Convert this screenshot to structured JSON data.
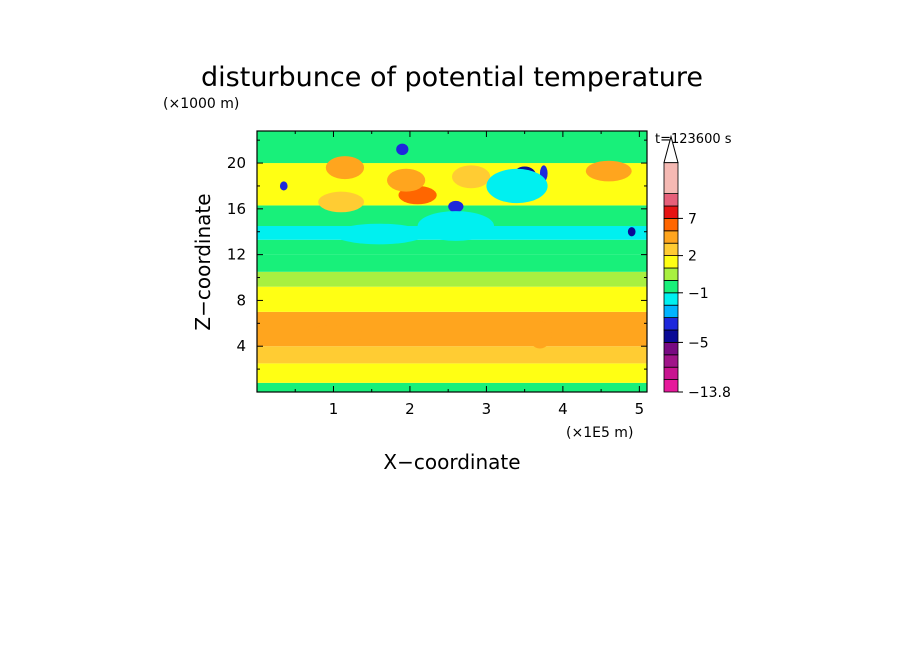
{
  "chart_data": {
    "type": "heatmap",
    "title": "disturbunce of potential temperature",
    "time_label": "t=123600 s",
    "xlabel": "X−coordinate",
    "ylabel": "Z−coordinate",
    "x_unit": "(×1E5 m)",
    "y_unit": "(×1000 m)",
    "xlim": [
      0,
      5.1
    ],
    "ylim": [
      0,
      22.8
    ],
    "x_ticks": [
      1,
      2,
      3,
      4,
      5
    ],
    "y_ticks": [
      4,
      8,
      12,
      16,
      20
    ],
    "x_tick_labels": [
      "1",
      "2",
      "3",
      "4",
      "5"
    ],
    "y_tick_labels": [
      "4",
      "8",
      "12",
      "16",
      "20"
    ],
    "colorbar": {
      "labels": [
        "7",
        "2",
        "−1",
        "−5",
        "−13.8"
      ],
      "label_values": [
        7,
        2,
        -1,
        -5,
        -13.8
      ],
      "levels": [
        -13.8,
        -11,
        -9,
        -7,
        -5,
        -4,
        -3,
        -2,
        -1,
        0,
        1,
        2,
        3,
        5,
        7,
        9,
        12
      ],
      "colors": [
        "#e6199b",
        "#c81490",
        "#a01489",
        "#780a82",
        "#0a0a96",
        "#1e28dc",
        "#00b4ff",
        "#00f0f0",
        "#18f07a",
        "#a8f040",
        "#ffff14",
        "#ffcc33",
        "#ffa51e",
        "#ff6600",
        "#e61414",
        "#e6607a",
        "#f5b9b3"
      ],
      "extend_max": true
    },
    "bands": [
      {
        "z": [
          0,
          0.8
        ],
        "value": -0.5,
        "color": "#18f07a"
      },
      {
        "z": [
          0.8,
          2.5
        ],
        "value": 0.5,
        "color": "#ffff14"
      },
      {
        "z": [
          2.5,
          4.0
        ],
        "value": 1.5,
        "color": "#ffcc33"
      },
      {
        "z": [
          4.0,
          7.0
        ],
        "value": 2.2,
        "color": "#ffa51e"
      },
      {
        "z": [
          7.0,
          9.2
        ],
        "value": 0.5,
        "color": "#ffff14"
      },
      {
        "z": [
          9.2,
          10.5
        ],
        "value": 0.2,
        "color": "#a8f040"
      },
      {
        "z": [
          10.5,
          12.0
        ],
        "value": -0.5,
        "color": "#18f07a"
      },
      {
        "z": [
          12.0,
          13.3
        ],
        "value": -0.5,
        "color": "#18f07a"
      },
      {
        "z": [
          13.3,
          14.5
        ],
        "value": -1.5,
        "color": "#00f0f0"
      },
      {
        "z": [
          14.5,
          16.3
        ],
        "value": -0.5,
        "color": "#18f07a"
      },
      {
        "z": [
          16.3,
          20.0
        ],
        "value": 0.5,
        "color": "#ffff14"
      },
      {
        "z": [
          20.0,
          22.8
        ],
        "value": -0.5,
        "color": "#18f07a"
      }
    ],
    "features": [
      {
        "x": 2.1,
        "z": 17.2,
        "rx": 0.25,
        "rz": 0.8,
        "value": 5,
        "color": "#ff6600"
      },
      {
        "x": 1.95,
        "z": 18.5,
        "rx": 0.25,
        "rz": 1.0,
        "value": 3,
        "color": "#ffa51e"
      },
      {
        "x": 1.15,
        "z": 19.6,
        "rx": 0.25,
        "rz": 1.0,
        "value": 3,
        "color": "#ffa51e"
      },
      {
        "x": 1.1,
        "z": 16.6,
        "rx": 0.3,
        "rz": 0.9,
        "value": 1,
        "color": "#ffcc33"
      },
      {
        "x": 2.8,
        "z": 18.8,
        "rx": 0.25,
        "rz": 1.0,
        "value": 2,
        "color": "#ffcc33"
      },
      {
        "x": 4.6,
        "z": 19.3,
        "rx": 0.3,
        "rz": 0.9,
        "value": 3,
        "color": "#ffa51e"
      },
      {
        "x": 3.5,
        "z": 18.9,
        "rx": 0.15,
        "rz": 0.8,
        "value": -5,
        "color": "#0a0a96"
      },
      {
        "x": 3.75,
        "z": 19.1,
        "rx": 0.05,
        "rz": 0.7,
        "value": -4,
        "color": "#1e28dc"
      },
      {
        "x": 1.9,
        "z": 21.2,
        "rx": 0.08,
        "rz": 0.5,
        "value": -4,
        "color": "#1e28dc"
      },
      {
        "x": 2.6,
        "z": 16.2,
        "rx": 0.1,
        "rz": 0.5,
        "value": -4,
        "color": "#1e28dc"
      },
      {
        "x": 2.6,
        "z": 14.5,
        "rx": 0.5,
        "rz": 1.3,
        "value": -1.5,
        "color": "#00f0f0"
      },
      {
        "x": 3.4,
        "z": 18.0,
        "rx": 0.4,
        "rz": 1.5,
        "value": -1.5,
        "color": "#00f0f0"
      },
      {
        "x": 1.6,
        "z": 13.8,
        "rx": 0.6,
        "rz": 0.9,
        "value": -1.5,
        "color": "#00f0f0"
      },
      {
        "x": 3.7,
        "z": 5.0,
        "rx": 0.15,
        "rz": 1.2,
        "value": 3,
        "color": "#ffa51e"
      },
      {
        "x": 1.0,
        "z": 5.0,
        "rx": 0.4,
        "rz": 0.8,
        "value": 3,
        "color": "#ffa51e"
      },
      {
        "x": 4.9,
        "z": 14.0,
        "rx": 0.05,
        "rz": 0.4,
        "value": -5,
        "color": "#0a0a96"
      },
      {
        "x": 0.35,
        "z": 18.0,
        "rx": 0.05,
        "rz": 0.4,
        "value": -4,
        "color": "#1e28dc"
      }
    ]
  }
}
